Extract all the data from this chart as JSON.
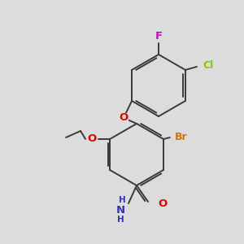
{
  "bg_color": "#dcdcdc",
  "bond_color": "#3a3a3a",
  "bond_width": 1.4,
  "atom_colors": {
    "F": "#cc00cc",
    "Cl": "#80cc00",
    "Br": "#cc7700",
    "O": "#dd0000",
    "N": "#3333bb",
    "C": "#3a3a3a"
  },
  "font_size": 8.5
}
